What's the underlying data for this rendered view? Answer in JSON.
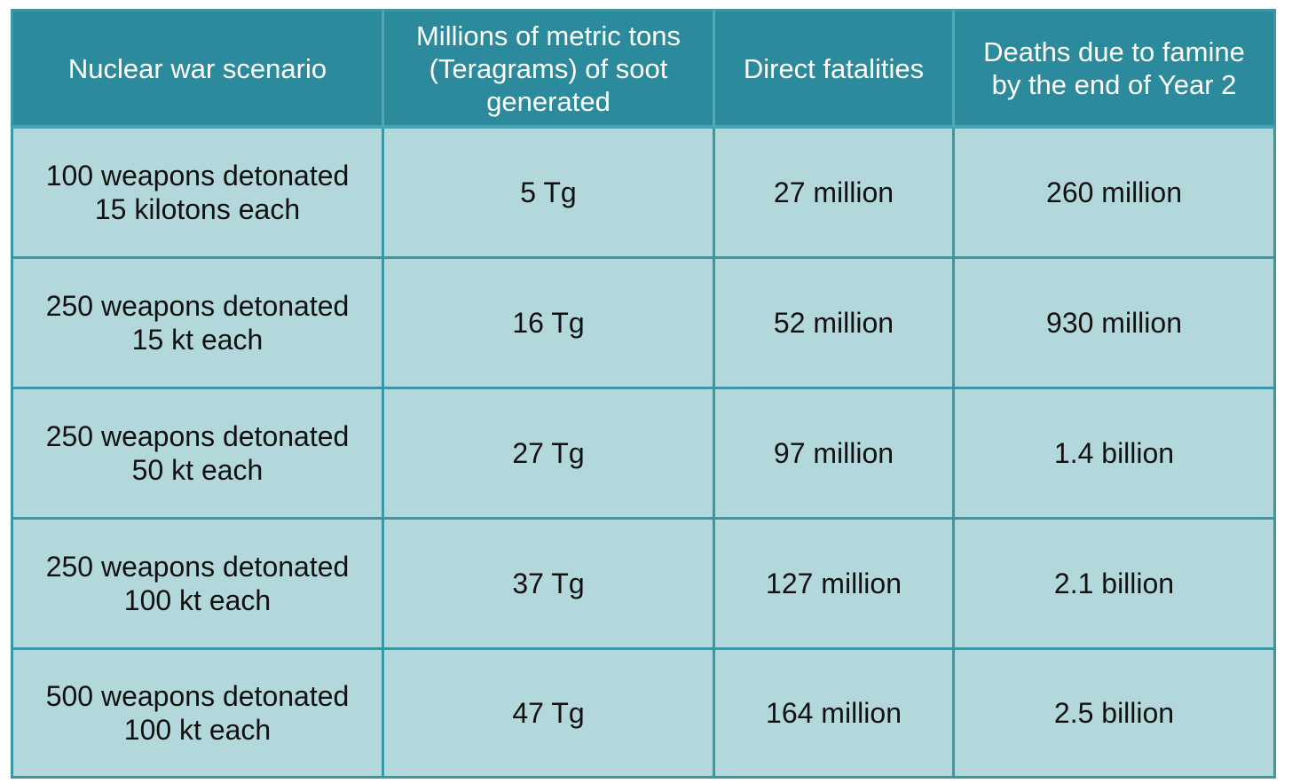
{
  "table": {
    "headers": [
      "Nuclear war scenario",
      "Millions of metric tons (Teragrams) of soot generated",
      "Direct fatalities",
      "Deaths due to famine by the end of Year 2"
    ],
    "rows": [
      {
        "scenario_line1": "100 weapons detonated",
        "scenario_line2": "15 kilotons each",
        "soot": "5 Tg",
        "direct": "27 million",
        "famine": "260 million"
      },
      {
        "scenario_line1": "250 weapons detonated",
        "scenario_line2": "15 kt each",
        "soot": "16 Tg",
        "direct": "52 million",
        "famine": "930 million"
      },
      {
        "scenario_line1": "250 weapons detonated",
        "scenario_line2": "50 kt each",
        "soot": "27 Tg",
        "direct": "97 million",
        "famine": "1.4 billion"
      },
      {
        "scenario_line1": "250 weapons detonated",
        "scenario_line2": "100 kt each",
        "soot": "37 Tg",
        "direct": "127 million",
        "famine": "2.1 billion"
      },
      {
        "scenario_line1": "500 weapons detonated",
        "scenario_line2": "100 kt each",
        "soot": "47 Tg",
        "direct": "164 million",
        "famine": "2.5 billion"
      }
    ]
  },
  "colors": {
    "header_bg": "#2b8a9b",
    "cell_bg": "#b3d8dc",
    "header_text": "#ffffff",
    "cell_text": "#111111"
  }
}
